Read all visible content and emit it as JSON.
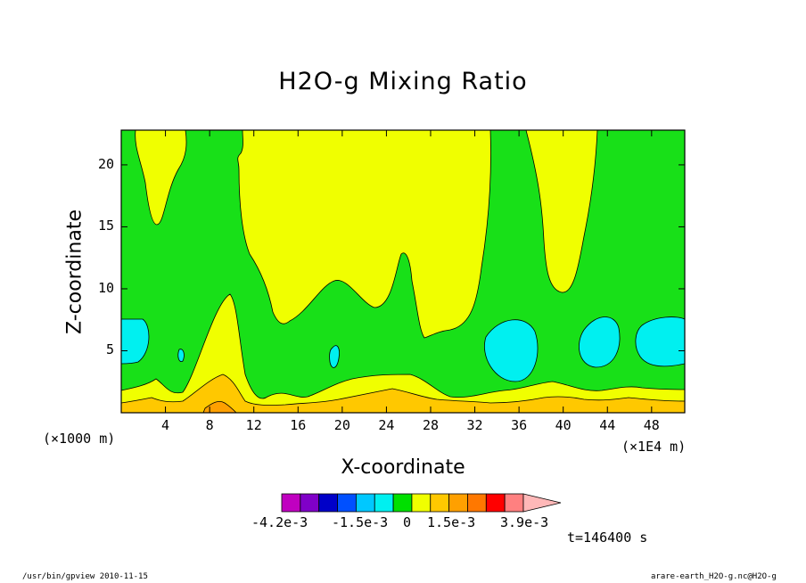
{
  "chart_data": {
    "type": "contour",
    "title": "H2O-g Mixing Ratio",
    "xlabel": "X-coordinate",
    "ylabel": "Z-coordinate",
    "x_unit": "(×1000 m)",
    "x_scale_note": "(×1E4 m)",
    "xlim": [
      0,
      51
    ],
    "ylim": [
      0,
      22.8
    ],
    "xticks": [
      4,
      8,
      12,
      16,
      20,
      24,
      28,
      32,
      36,
      40,
      44,
      48
    ],
    "yticks": [
      5,
      10,
      15,
      20
    ],
    "colorbar": {
      "labels": [
        "-4.2e-3",
        "-1.5e-3",
        "0",
        "1.5e-3",
        "3.9e-3"
      ],
      "colors": [
        "#c000c0",
        "#8000c8",
        "#0000c8",
        "#0050ff",
        "#00c8ff",
        "#00f0f0",
        "#00e000",
        "#f0ff00",
        "#ffc800",
        "#ffa000",
        "#ff7800",
        "#ff0000",
        "#ff8080",
        "#ffb8b8"
      ],
      "extend": "max"
    },
    "colors": {
      "background_level": "#18e018",
      "positive_low": "#f0ff00",
      "positive_mid": "#ffc800",
      "positive_high": "#ffa000",
      "negative": "#00f0f0"
    },
    "time_label": "t=146400 s"
  },
  "footer": {
    "left": "/usr/bin/gpview   2010-11-15",
    "right": "arare-earth_H2O-g.nc@H2O-g"
  }
}
